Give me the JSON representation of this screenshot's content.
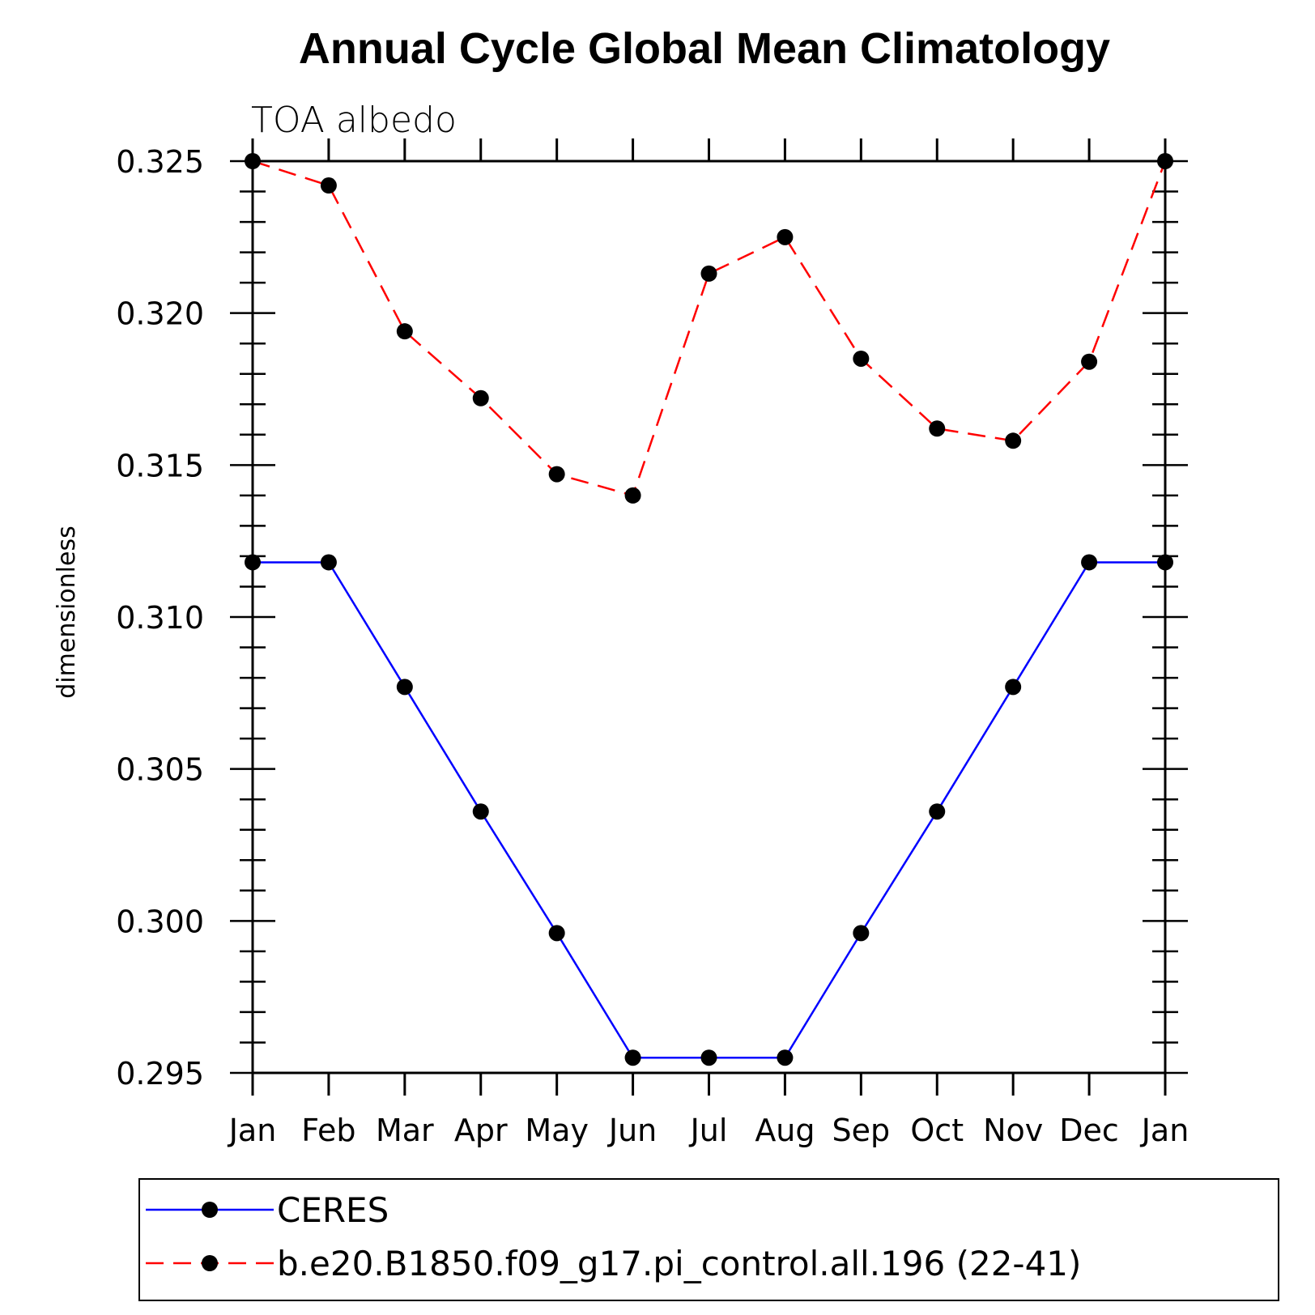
{
  "chart_data": {
    "type": "line",
    "title": "Annual Cycle Global Mean Climatology",
    "subtitle": "TOA albedo",
    "xlabel": "",
    "ylabel": "dimensionless",
    "categories": [
      "Jan",
      "Feb",
      "Mar",
      "Apr",
      "May",
      "Jun",
      "Jul",
      "Aug",
      "Sep",
      "Oct",
      "Nov",
      "Dec",
      "Jan"
    ],
    "ylim": [
      0.295,
      0.325
    ],
    "yticks": [
      "0.295",
      "0.300",
      "0.305",
      "0.310",
      "0.315",
      "0.320",
      "0.325"
    ],
    "grid": false,
    "legend_position": "bottom",
    "series": [
      {
        "name": "CERES",
        "color": "#0000ff",
        "dash": "solid",
        "values": [
          0.3118,
          0.3118,
          0.3077,
          0.3036,
          0.2996,
          0.2955,
          0.2955,
          0.2955,
          0.2996,
          0.3036,
          0.3077,
          0.3118,
          0.3118
        ]
      },
      {
        "name": "b.e20.B1850.f09_g17.pi_control.all.196 (22-41)",
        "color": "#ff0000",
        "dash": "dashed",
        "values": [
          0.325,
          0.3242,
          0.3194,
          0.3172,
          0.3147,
          0.314,
          0.3213,
          0.3225,
          0.3185,
          0.3162,
          0.3158,
          0.3184,
          0.325
        ]
      }
    ]
  }
}
